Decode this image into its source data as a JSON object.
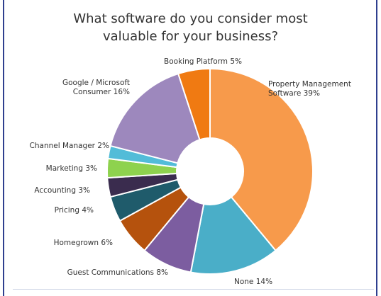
{
  "chart_data": {
    "type": "pie",
    "donut": true,
    "title_lines": [
      "What software do you consider most",
      "valuable for your business?"
    ],
    "slices": [
      {
        "label": [
          "Property Management",
          "Software 39%"
        ],
        "category": "Property Management Software",
        "value": 39,
        "color": "#f79a4b"
      },
      {
        "label": [
          "None 14%"
        ],
        "category": "None",
        "value": 14,
        "color": "#4aaec8"
      },
      {
        "label": [
          "Guest Communications 8%"
        ],
        "category": "Guest Communications",
        "value": 8,
        "color": "#7c5da0"
      },
      {
        "label": [
          "Homegrown 6%"
        ],
        "category": "Homegrown",
        "value": 6,
        "color": "#b5520d"
      },
      {
        "label": [
          "Pricing 4%"
        ],
        "category": "Pricing",
        "value": 4,
        "color": "#1f5b6b"
      },
      {
        "label": [
          "Accounting 3%"
        ],
        "category": "Accounting",
        "value": 3,
        "color": "#3a2c4e"
      },
      {
        "label": [
          "Marketing 3%"
        ],
        "category": "Marketing",
        "value": 3,
        "color": "#8ed24e"
      },
      {
        "label": [
          "Channel Manager 2%"
        ],
        "category": "Channel Manager",
        "value": 2,
        "color": "#52bcd8"
      },
      {
        "label": [
          "Google / Microsoft",
          "Consumer 16%"
        ],
        "category": "Google / Microsoft Consumer",
        "value": 16,
        "color": "#9d88bd"
      },
      {
        "label": [
          "Booking Platform 5%"
        ],
        "category": "Booking Platform",
        "value": 5,
        "color": "#f07a12"
      }
    ]
  }
}
